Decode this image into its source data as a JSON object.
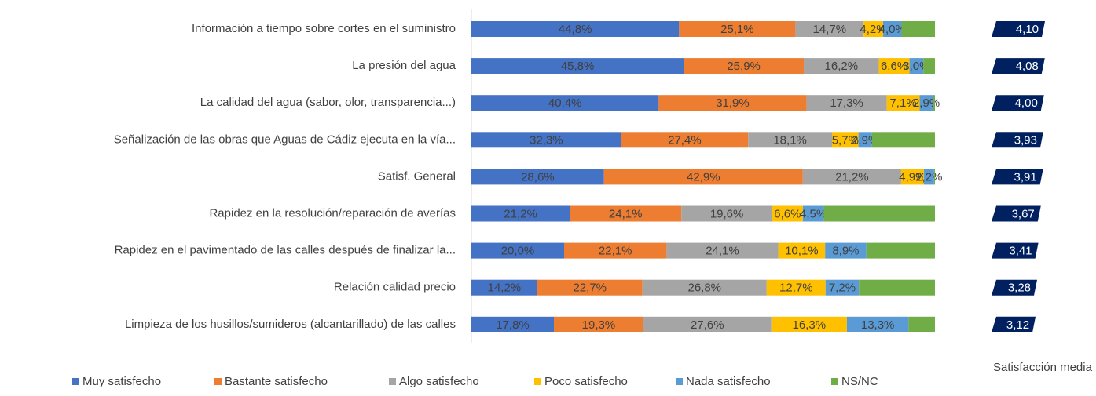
{
  "chart_data": {
    "type": "stacked_barh",
    "categories": [
      "Información a tiempo sobre cortes en el suministro",
      "La presión del agua",
      "La calidad del agua (sabor, olor, transparencia...)",
      "Señalización de las obras que Aguas de Cádiz ejecuta en la vía...",
      "Satisf. General",
      "Rapidez en la resolución/reparación de averías",
      "Rapidez en el pavimentado de las calles después de finalizar la...",
      "Relación calidad precio",
      "Limpieza de los husillos/sumideros (alcantarillado) de las calles"
    ],
    "xlim": [
      0,
      100
    ],
    "legend": "bottom",
    "series": [
      {
        "name": "Muy satisfecho",
        "color": "#4472c4",
        "values": [
          44.8,
          45.8,
          40.4,
          32.3,
          28.6,
          21.2,
          20.0,
          14.2,
          17.8
        ],
        "value_labels": [
          "44,8%",
          "45,8%",
          "40,4%",
          "32,3%",
          "28,6%",
          "21,2%",
          "20,0%",
          "14,2%",
          "17,8%"
        ]
      },
      {
        "name": "Bastante satisfecho",
        "color": "#ed7d31",
        "values": [
          25.1,
          25.9,
          31.9,
          27.4,
          42.9,
          24.1,
          22.1,
          22.7,
          19.3
        ],
        "value_labels": [
          "25,1%",
          "25,9%",
          "31,9%",
          "27,4%",
          "42,9%",
          "24,1%",
          "22,1%",
          "22,7%",
          "19,3%"
        ]
      },
      {
        "name": "Algo satisfecho",
        "color": "#a5a5a5",
        "values": [
          14.7,
          16.2,
          17.3,
          18.1,
          21.2,
          19.6,
          24.1,
          26.8,
          27.6
        ],
        "value_labels": [
          "14,7%",
          "16,2%",
          "17,3%",
          "18,1%",
          "21,2%",
          "19,6%",
          "24,1%",
          "26,8%",
          "27,6%"
        ]
      },
      {
        "name": "Poco satisfecho",
        "color": "#ffc000",
        "values": [
          4.2,
          6.6,
          7.1,
          5.7,
          4.9,
          6.6,
          10.1,
          12.7,
          16.3
        ],
        "value_labels": [
          "4,2%",
          "6,6%",
          "7,1%",
          "5,7%",
          "4,9%",
          "6,6%",
          "10,1%",
          "12,7%",
          "16,3%"
        ]
      },
      {
        "name": "Nada satisfecho",
        "color": "#5b9bd5",
        "values": [
          4.0,
          3.0,
          2.9,
          2.9,
          2.2,
          4.5,
          8.9,
          7.2,
          13.3
        ],
        "value_labels": [
          "4,0%",
          "3,0%",
          "2,9%",
          "2,9%",
          "2,2%",
          "4,5%",
          "8,9%",
          "7,2%",
          "13,3%"
        ]
      },
      {
        "name": "NS/NC",
        "color": "#70ad47",
        "values": [
          7.2,
          2.5,
          0.4,
          13.6,
          0.2,
          24.0,
          14.8,
          16.4,
          5.7
        ]
      }
    ],
    "side_panel": {
      "title": "Satisfacción media",
      "color": "#002060",
      "values": [
        4.1,
        4.08,
        4.0,
        3.93,
        3.91,
        3.67,
        3.41,
        3.28,
        3.12
      ],
      "value_labels": [
        "4,10",
        "4,08",
        "4,00",
        "3,93",
        "3,91",
        "3,67",
        "3,41",
        "3,28",
        "3,12"
      ]
    }
  }
}
